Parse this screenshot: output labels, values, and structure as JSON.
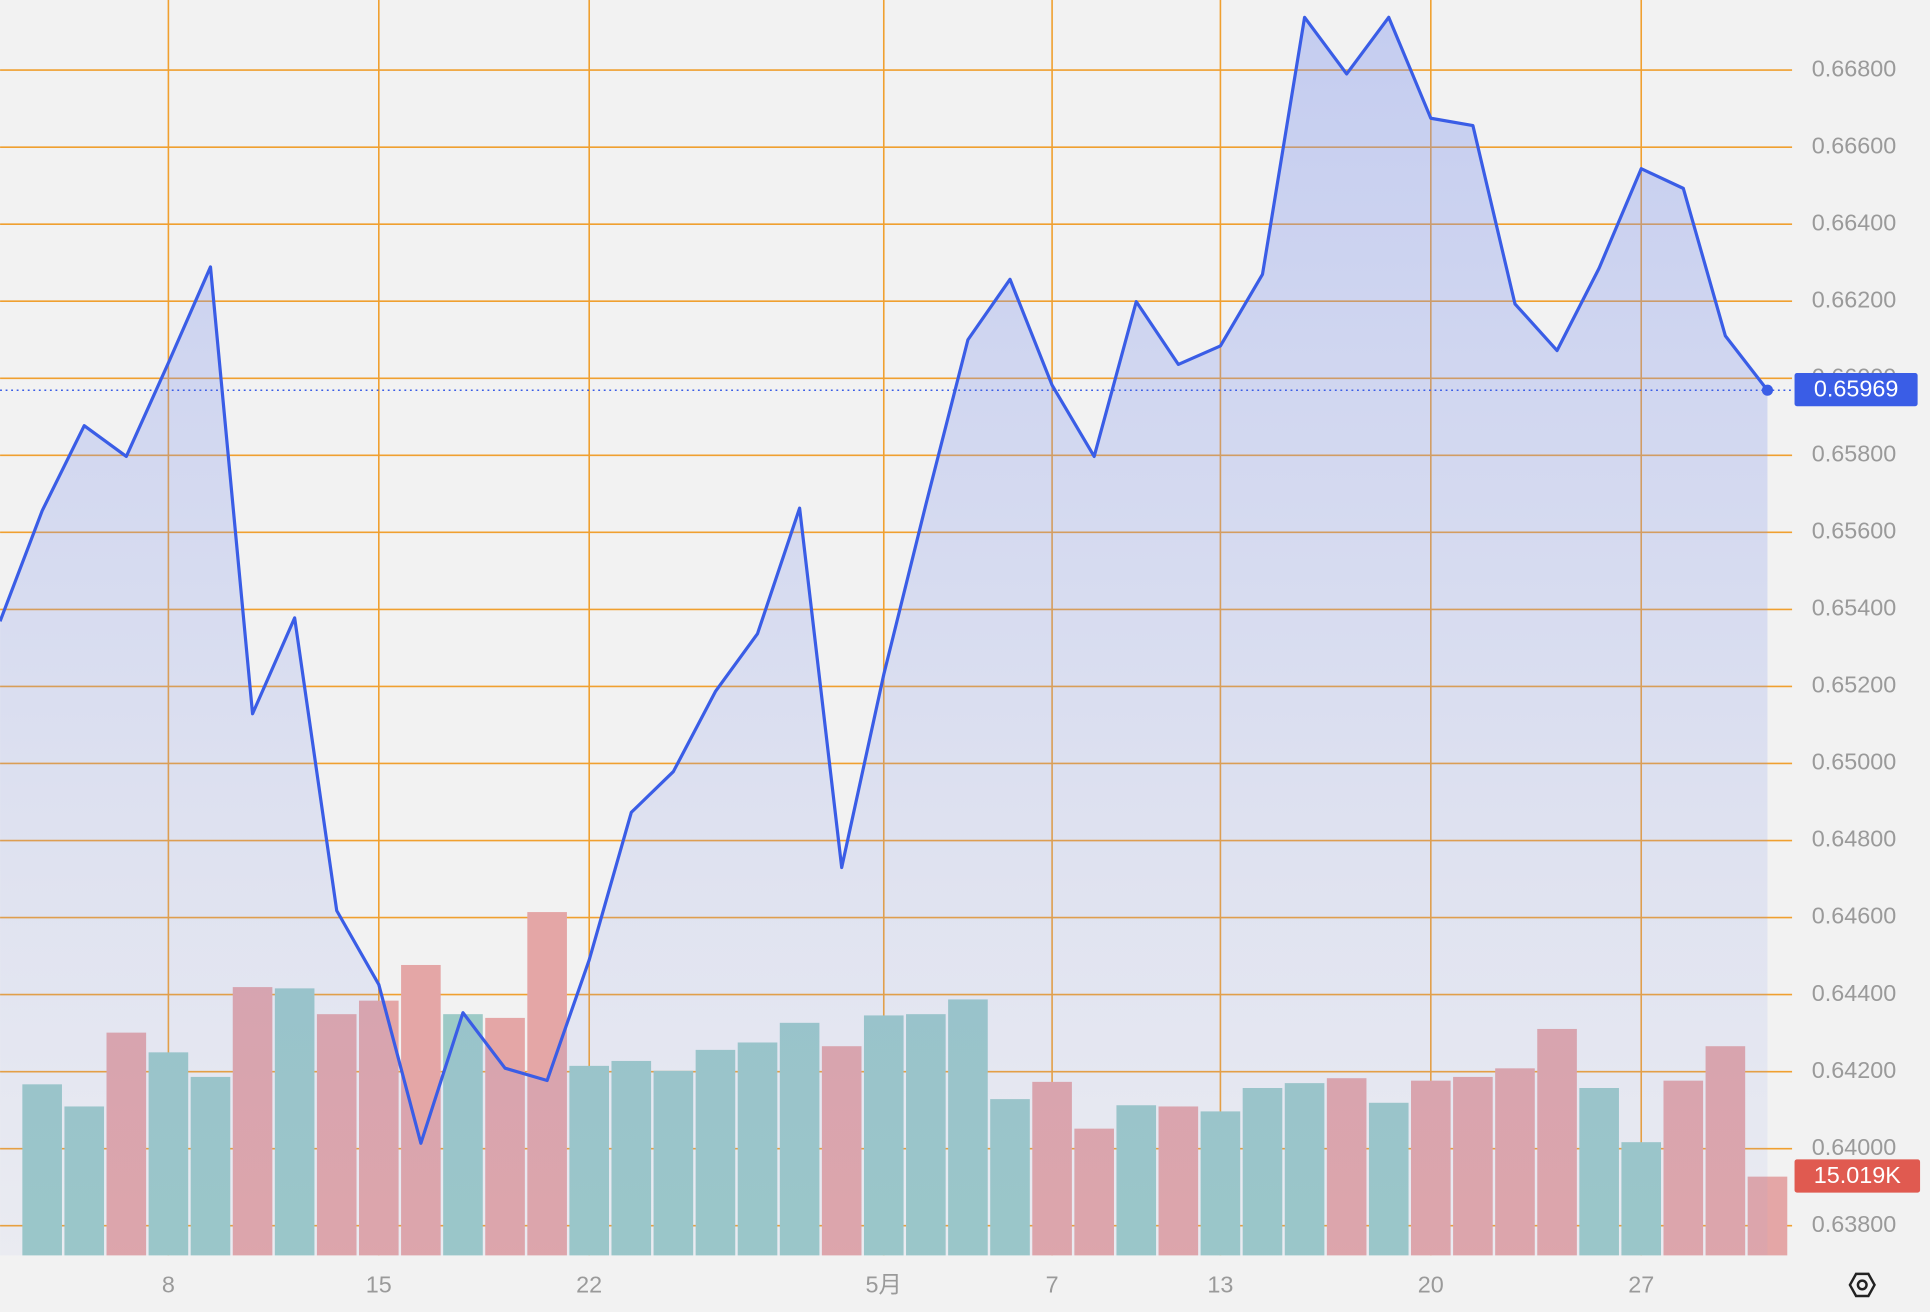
{
  "chart_data": {
    "type": "area",
    "categories": [
      null,
      null,
      null,
      null,
      "8",
      null,
      null,
      null,
      null,
      "15",
      null,
      null,
      null,
      null,
      "22",
      null,
      null,
      null,
      null,
      null,
      null,
      "5月",
      null,
      null,
      null,
      "7",
      null,
      null,
      null,
      "13",
      null,
      null,
      null,
      null,
      "20",
      null,
      null,
      null,
      null,
      "27",
      null,
      null,
      null
    ],
    "series": [
      {
        "color": "#3a5de6",
        "values": [
          0.65369,
          0.65656,
          0.65877,
          0.65797,
          0.6604,
          0.66289,
          0.65129,
          0.65378,
          0.64618,
          0.64426,
          0.64014,
          0.64353,
          0.64209,
          0.64177,
          0.6449,
          0.64873,
          0.64979,
          0.65187,
          0.65337,
          0.65663,
          0.6473,
          0.65231,
          0.65672,
          0.661,
          0.66257,
          0.65982,
          0.65797,
          0.66199,
          0.66036,
          0.66084,
          0.6627,
          0.66937,
          0.6679,
          0.66937,
          0.66675,
          0.66656,
          0.66193,
          0.66072,
          0.66286,
          0.66544,
          0.66493,
          0.6611,
          0.65969
        ]
      },
      {
        "type": "bar",
        "up_color": "#9ccac6",
        "down_color": "#e4a6a6",
        "label_color": "#e05a50",
        "values": [
          null,
          32.62,
          28.4,
          42.48,
          38.72,
          34.03,
          51.16,
          50.92,
          46.0,
          48.58,
          55.38,
          46.0,
          45.29,
          65.47,
          36.14,
          37.08,
          35.2,
          39.19,
          40.6,
          44.35,
          39.89,
          45.76,
          46.0,
          48.81,
          29.8,
          33.09,
          24.17,
          28.63,
          28.4,
          27.46,
          31.92,
          32.85,
          33.79,
          29.1,
          33.32,
          34.03,
          35.67,
          43.18,
          31.92,
          21.59,
          33.32,
          39.89,
          15.019
        ],
        "value_labels": [
          null,
          null,
          null,
          null,
          null,
          null,
          null,
          null,
          null,
          null,
          null,
          null,
          null,
          null,
          null,
          null,
          null,
          null,
          null,
          null,
          null,
          null,
          null,
          null,
          null,
          null,
          null,
          null,
          null,
          null,
          null,
          null,
          null,
          null,
          null,
          null,
          null,
          null,
          null,
          null,
          null,
          null,
          "15.019K"
        ],
        "ylim": [
          0,
          239.4
        ]
      }
    ],
    "ylim": [
      0.63723,
      0.66982
    ],
    "yticks": [
      {
        "value": 0.638,
        "label": "0.63800"
      },
      {
        "value": 0.64,
        "label": "0.64000"
      },
      {
        "value": 0.642,
        "label": "0.64200"
      },
      {
        "value": 0.644,
        "label": "0.64400"
      },
      {
        "value": 0.646,
        "label": "0.64600"
      },
      {
        "value": 0.648,
        "label": "0.64800"
      },
      {
        "value": 0.65,
        "label": "0.65000"
      },
      {
        "value": 0.652,
        "label": "0.65200"
      },
      {
        "value": 0.654,
        "label": "0.65400"
      },
      {
        "value": 0.656,
        "label": "0.65600"
      },
      {
        "value": 0.658,
        "label": "0.65800"
      },
      {
        "value": 0.66,
        "label": "0.66000"
      },
      {
        "value": 0.662,
        "label": "0.66200"
      },
      {
        "value": 0.664,
        "label": "0.66400"
      },
      {
        "value": 0.666,
        "label": "0.66600"
      },
      {
        "value": 0.668,
        "label": "0.66800"
      }
    ],
    "grid": true,
    "grid_color": "#f0a030"
  }
}
